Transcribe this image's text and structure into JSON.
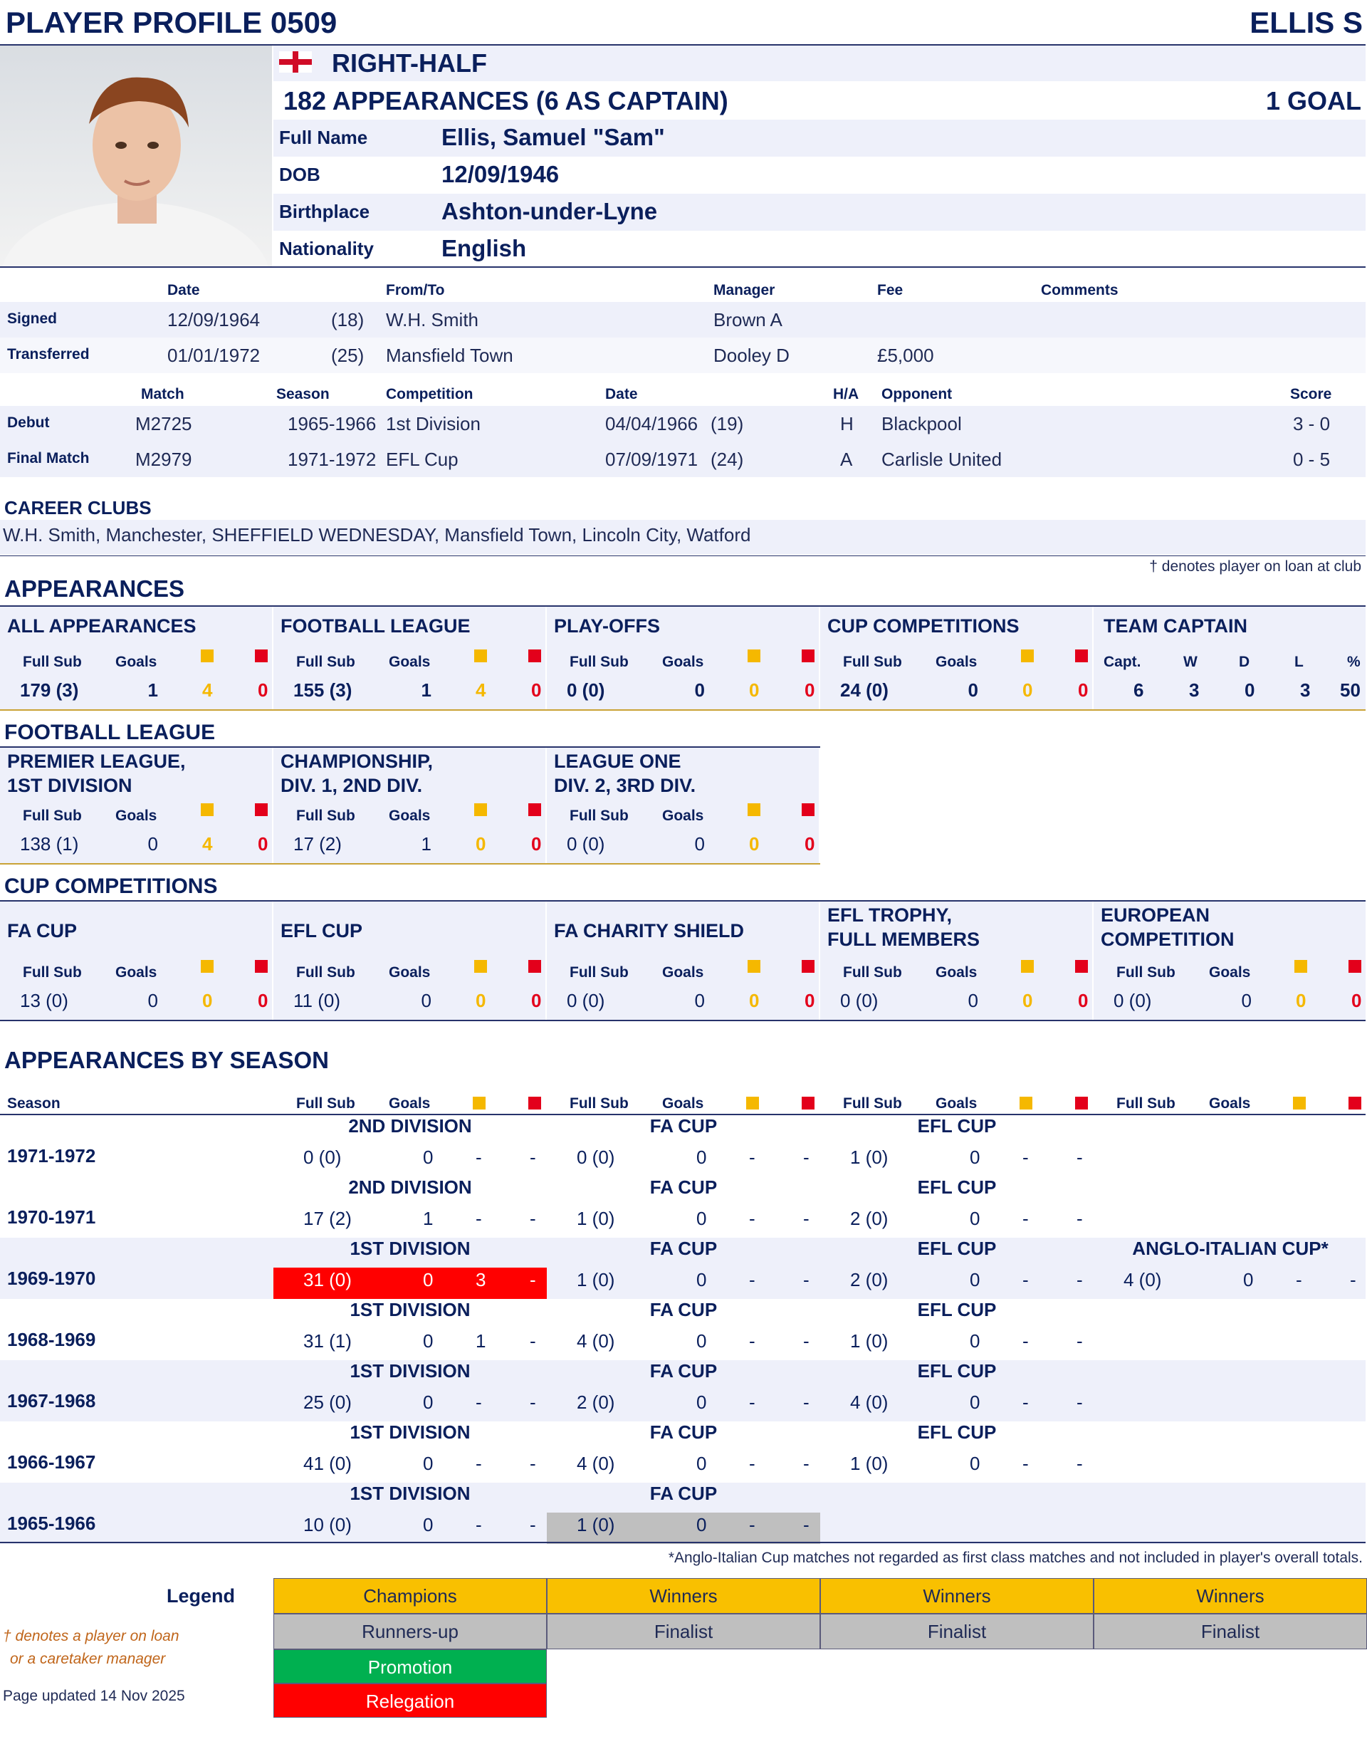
{
  "header": {
    "title": "PLAYER PROFILE 0509",
    "player_short": "ELLIS S",
    "position": "RIGHT-HALF",
    "appearances_line": "182 APPEARANCES (6 AS CAPTAIN)",
    "goals_line": "1 GOAL"
  },
  "details": [
    {
      "label": "Full Name",
      "value": "Ellis, Samuel \"Sam\""
    },
    {
      "label": "DOB",
      "value": "12/09/1946"
    },
    {
      "label": "Birthplace",
      "value": "Ashton-under-Lyne"
    },
    {
      "label": "Nationality",
      "value": "English"
    }
  ],
  "transfers": {
    "headers": {
      "date": "Date",
      "fromto": "From/To",
      "manager": "Manager",
      "fee": "Fee",
      "comments": "Comments"
    },
    "rows": [
      {
        "label": "Signed",
        "date": "12/09/1964",
        "age": "(18)",
        "fromto": "W.H. Smith",
        "manager": "Brown A",
        "fee": ""
      },
      {
        "label": "Transferred",
        "date": "01/01/1972",
        "age": "(25)",
        "fromto": "Mansfield Town",
        "manager": "Dooley D",
        "fee": "£5,000"
      }
    ]
  },
  "matches": {
    "headers": {
      "match": "Match",
      "season": "Season",
      "competition": "Competition",
      "date": "Date",
      "ha": "H/A",
      "opponent": "Opponent",
      "score": "Score"
    },
    "rows": [
      {
        "label": "Debut",
        "match": "M2725",
        "season": "1965-1966",
        "competition": "1st Division",
        "date": "04/04/1966",
        "age": "(19)",
        "ha": "H",
        "opponent": "Blackpool",
        "score": "3 - 0"
      },
      {
        "label": "Final Match",
        "match": "M2979",
        "season": "1971-1972",
        "competition": "EFL Cup",
        "date": "07/09/1971",
        "age": "(24)",
        "ha": "A",
        "opponent": "Carlisle United",
        "score": "0 - 5"
      }
    ]
  },
  "career_clubs": {
    "heading": "CAREER CLUBS",
    "text": "W.H. Smith, Manchester, SHEFFIELD WEDNESDAY, Mansfield Town, Lincoln City, Watford"
  },
  "loan_note": "† denotes player on loan at club",
  "appearances": {
    "heading": "APPEARANCES",
    "col_labels": {
      "fullsub": "Full Sub",
      "goals": "Goals"
    },
    "panels": [
      {
        "title": "ALL APPEARANCES",
        "apps": "179 (3)",
        "goals": "1",
        "y": "4",
        "r": "0"
      },
      {
        "title": "FOOTBALL LEAGUE",
        "apps": "155 (3)",
        "goals": "1",
        "y": "4",
        "r": "0"
      },
      {
        "title": "PLAY-OFFS",
        "apps": "0 (0)",
        "goals": "0",
        "y": "0",
        "r": "0"
      },
      {
        "title": "CUP COMPETITIONS",
        "apps": "24 (0)",
        "goals": "0",
        "y": "0",
        "r": "0"
      }
    ],
    "captain": {
      "title": "TEAM CAPTAIN",
      "labels": [
        "Capt.",
        "W",
        "D",
        "L",
        "%"
      ],
      "values": [
        "6",
        "3",
        "0",
        "3",
        "50"
      ]
    }
  },
  "football_league": {
    "heading": "FOOTBALL LEAGUE",
    "panels": [
      {
        "title1": "PREMIER LEAGUE,",
        "title2": "1ST DIVISION",
        "apps": "138 (1)",
        "goals": "0",
        "y": "4",
        "r": "0"
      },
      {
        "title1": "CHAMPIONSHIP,",
        "title2": "DIV. 1, 2ND DIV.",
        "apps": "17 (2)",
        "goals": "1",
        "y": "0",
        "r": "0"
      },
      {
        "title1": "LEAGUE ONE",
        "title2": "DIV. 2, 3RD DIV.",
        "apps": "0 (0)",
        "goals": "0",
        "y": "0",
        "r": "0"
      }
    ]
  },
  "cup_competitions": {
    "heading": "CUP COMPETITIONS",
    "panels": [
      {
        "title1": "",
        "title2": "FA CUP",
        "apps": "13 (0)",
        "goals": "0",
        "y": "0",
        "r": "0"
      },
      {
        "title1": "",
        "title2": "EFL CUP",
        "apps": "11 (0)",
        "goals": "0",
        "y": "0",
        "r": "0"
      },
      {
        "title1": "",
        "title2": "FA CHARITY SHIELD",
        "apps": "0 (0)",
        "goals": "0",
        "y": "0",
        "r": "0"
      },
      {
        "title1": "EFL TROPHY,",
        "title2": "FULL MEMBERS",
        "apps": "0 (0)",
        "goals": "0",
        "y": "0",
        "r": "0"
      },
      {
        "title1": "EUROPEAN",
        "title2": "COMPETITION",
        "apps": "0 (0)",
        "goals": "0",
        "y": "0",
        "r": "0"
      }
    ]
  },
  "by_season": {
    "heading": "APPEARANCES BY SEASON",
    "season_label": "Season",
    "rows": [
      {
        "season": "1971-1972",
        "league": {
          "comp": "2ND DIVISION",
          "apps": "0 (0)",
          "goals": "0",
          "y": "-",
          "r": "-"
        },
        "fa": {
          "comp": "FA CUP",
          "apps": "0 (0)",
          "goals": "0",
          "y": "-",
          "r": "-"
        },
        "efl": {
          "comp": "EFL CUP",
          "apps": "1 (0)",
          "goals": "0",
          "y": "-",
          "r": "-"
        }
      },
      {
        "season": "1970-1971",
        "league": {
          "comp": "2ND DIVISION",
          "apps": "17 (2)",
          "goals": "1",
          "y": "-",
          "r": "-"
        },
        "fa": {
          "comp": "FA CUP",
          "apps": "1 (0)",
          "goals": "0",
          "y": "-",
          "r": "-"
        },
        "efl": {
          "comp": "EFL CUP",
          "apps": "2 (0)",
          "goals": "0",
          "y": "-",
          "r": "-"
        }
      },
      {
        "season": "1969-1970",
        "league": {
          "comp": "1ST DIVISION",
          "apps": "31 (0)",
          "goals": "0",
          "y": "3",
          "r": "-"
        },
        "fa": {
          "comp": "FA CUP",
          "apps": "1 (0)",
          "goals": "0",
          "y": "-",
          "r": "-"
        },
        "efl": {
          "comp": "EFL CUP",
          "apps": "2 (0)",
          "goals": "0",
          "y": "-",
          "r": "-"
        },
        "other": {
          "comp": "ANGLO-ITALIAN CUP*",
          "apps": "4 (0)",
          "goals": "0",
          "y": "-",
          "r": "-"
        }
      },
      {
        "season": "1968-1969",
        "league": {
          "comp": "1ST DIVISION",
          "apps": "31 (1)",
          "goals": "0",
          "y": "1",
          "r": "-"
        },
        "fa": {
          "comp": "FA CUP",
          "apps": "4 (0)",
          "goals": "0",
          "y": "-",
          "r": "-"
        },
        "efl": {
          "comp": "EFL CUP",
          "apps": "1 (0)",
          "goals": "0",
          "y": "-",
          "r": "-"
        }
      },
      {
        "season": "1967-1968",
        "league": {
          "comp": "1ST DIVISION",
          "apps": "25 (0)",
          "goals": "0",
          "y": "-",
          "r": "-"
        },
        "fa": {
          "comp": "FA CUP",
          "apps": "2 (0)",
          "goals": "0",
          "y": "-",
          "r": "-"
        },
        "efl": {
          "comp": "EFL CUP",
          "apps": "4 (0)",
          "goals": "0",
          "y": "-",
          "r": "-"
        }
      },
      {
        "season": "1966-1967",
        "league": {
          "comp": "1ST DIVISION",
          "apps": "41 (0)",
          "goals": "0",
          "y": "-",
          "r": "-"
        },
        "fa": {
          "comp": "FA CUP",
          "apps": "4 (0)",
          "goals": "0",
          "y": "-",
          "r": "-"
        },
        "efl": {
          "comp": "EFL CUP",
          "apps": "1 (0)",
          "goals": "0",
          "y": "-",
          "r": "-"
        }
      },
      {
        "season": "1965-1966",
        "league": {
          "comp": "1ST DIVISION",
          "apps": "10 (0)",
          "goals": "0",
          "y": "-",
          "r": "-"
        },
        "fa": {
          "comp": "FA CUP",
          "apps": "1 (0)",
          "goals": "0",
          "y": "-",
          "r": "-"
        }
      }
    ],
    "footnote": "*Anglo-Italian Cup matches not regarded as first class matches and not included in player's overall totals."
  },
  "legend": {
    "heading": "Legend",
    "row1": [
      "Champions",
      "Winners",
      "Winners",
      "Winners"
    ],
    "row2": [
      "Runners-up",
      "Finalist",
      "Finalist",
      "Finalist"
    ],
    "promotion": "Promotion",
    "relegation": "Relegation",
    "loan_note_1": "† denotes a player on loan",
    "loan_note_2": "or a caretaker manager",
    "updated": "Page updated 14 Nov 2025"
  },
  "colors": {
    "navy": "#0a1f5c",
    "champions": "#f9c000",
    "runners_up": "#bfbfbf",
    "promotion": "#00b050",
    "relegation": "#ff0000",
    "shade": "#eef0fa"
  }
}
